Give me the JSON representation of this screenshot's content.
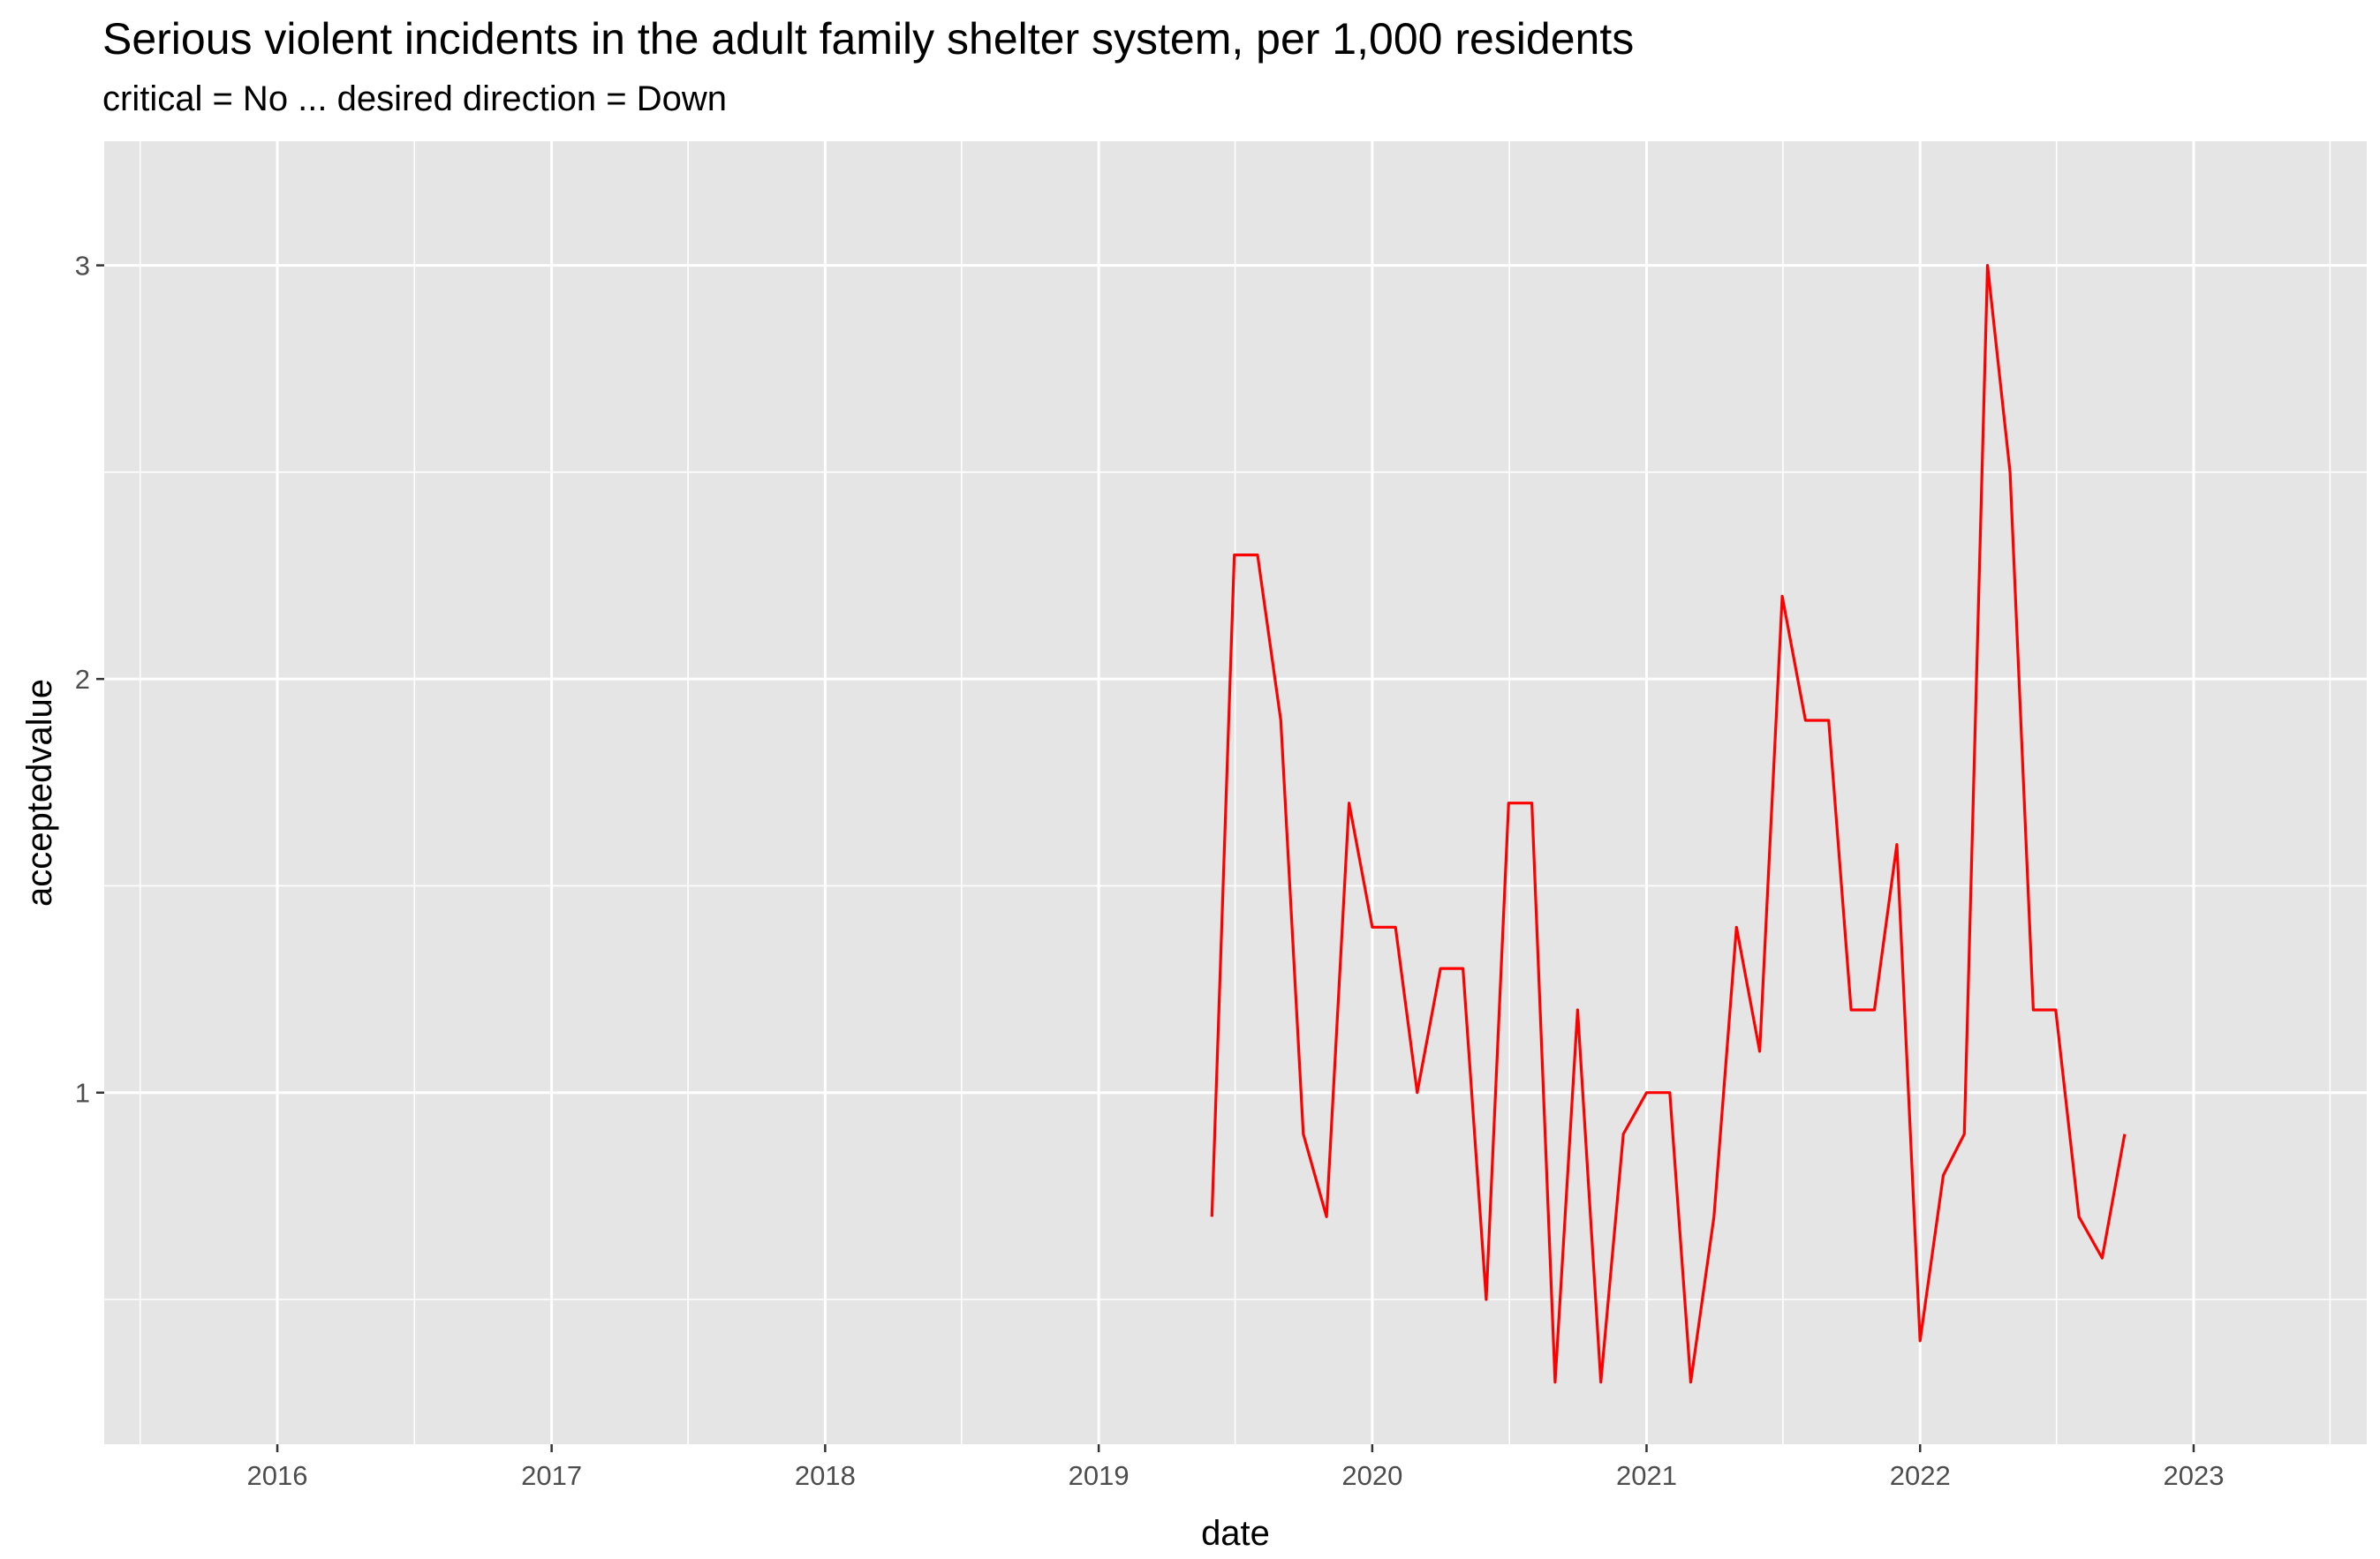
{
  "chart_data": {
    "type": "line",
    "title": "Serious violent incidents in the adult family shelter system, per 1,000 residents",
    "subtitle": "critical = No ... desired direction = Down",
    "xlabel": "date",
    "ylabel": "acceptedvalue",
    "x_ticks": [
      "2016",
      "2017",
      "2018",
      "2019",
      "2020",
      "2021",
      "2022",
      "2023"
    ],
    "y_ticks": [
      "1",
      "2",
      "3"
    ],
    "xlim": [
      "2015-05-15",
      "2023-08-20"
    ],
    "ylim": [
      0.15,
      3.3
    ],
    "grid": true,
    "background": "#e5e5e5",
    "line_color": "#ff0000",
    "series": [
      {
        "x": [
          "2019-06-01",
          "2019-07-01",
          "2019-08-01",
          "2019-09-01",
          "2019-10-01",
          "2019-11-01",
          "2019-12-01",
          "2020-01-01",
          "2020-02-01",
          "2020-03-01",
          "2020-04-01",
          "2020-05-01",
          "2020-06-01",
          "2020-07-01",
          "2020-08-01",
          "2020-09-01",
          "2020-10-01",
          "2020-11-01",
          "2020-12-01",
          "2021-01-01",
          "2021-02-01",
          "2021-03-01",
          "2021-04-01",
          "2021-05-01",
          "2021-06-01",
          "2021-07-01",
          "2021-08-01",
          "2021-09-01",
          "2021-10-01",
          "2021-11-01",
          "2021-12-01",
          "2022-01-01",
          "2022-02-01",
          "2022-03-01",
          "2022-04-01",
          "2022-05-01",
          "2022-06-01",
          "2022-07-01",
          "2022-08-01",
          "2022-09-01",
          "2022-10-01"
        ],
        "y": [
          0.7,
          2.3,
          2.3,
          1.9,
          0.9,
          0.7,
          1.7,
          1.4,
          1.4,
          1.0,
          1.3,
          1.3,
          0.5,
          1.7,
          1.7,
          0.3,
          1.2,
          0.3,
          0.9,
          1.0,
          1.0,
          0.3,
          0.7,
          1.4,
          1.1,
          2.2,
          1.9,
          1.9,
          1.2,
          1.2,
          1.6,
          0.4,
          0.8,
          0.9,
          3.0,
          2.5,
          1.2,
          1.2,
          0.7,
          0.6,
          0.9
        ]
      }
    ]
  }
}
